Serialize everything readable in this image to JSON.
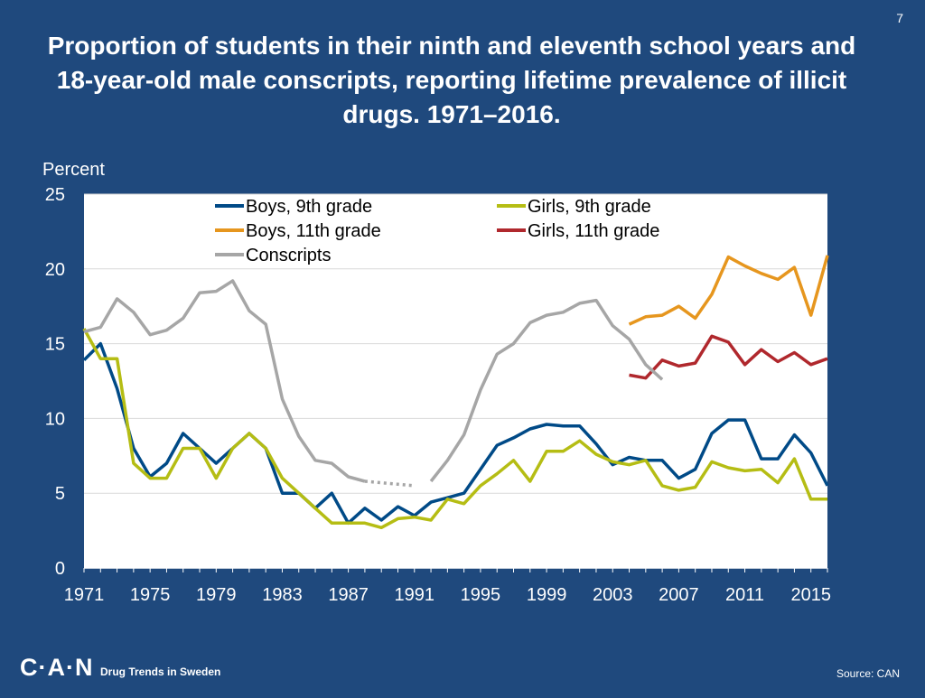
{
  "page_number": "7",
  "title": "Proportion of students in their ninth and eleventh school years and 18-year-old male conscripts, reporting lifetime prevalence of illicit drugs. 1971–2016.",
  "footer": {
    "logo": "C·A·N",
    "tagline": "Drug Trends in Sweden",
    "source": "Source: CAN"
  },
  "chart_data": {
    "type": "line",
    "title": "Proportion of students in their ninth and eleventh school years and 18-year-old male conscripts, reporting lifetime prevalence of illicit drugs. 1971–2016.",
    "ylabel": "Percent",
    "xlabel": "",
    "xlim": [
      1971,
      2016
    ],
    "ylim": [
      0,
      25
    ],
    "yticks": [
      0,
      5,
      10,
      15,
      20,
      25
    ],
    "xticks": [
      1971,
      1975,
      1979,
      1983,
      1987,
      1991,
      1995,
      1999,
      2003,
      2007,
      2011,
      2015
    ],
    "grid": true,
    "legend_position": "top",
    "series": [
      {
        "name": "Boys, 9th grade",
        "color": "#004a87",
        "points": [
          [
            1971,
            13.9
          ],
          [
            1972,
            15
          ],
          [
            1973,
            12
          ],
          [
            1974,
            8
          ],
          [
            1975,
            6.1
          ],
          [
            1976,
            7
          ],
          [
            1977,
            9
          ],
          [
            1978,
            8
          ],
          [
            1979,
            7
          ],
          [
            1980,
            8
          ],
          [
            1981,
            9
          ],
          [
            1982,
            8
          ],
          [
            1983,
            5
          ],
          [
            1984,
            5
          ],
          [
            1985,
            4
          ],
          [
            1986,
            5
          ],
          [
            1987,
            3
          ],
          [
            1988,
            4
          ],
          [
            1989,
            3.2
          ],
          [
            1990,
            4.1
          ],
          [
            1991,
            3.5
          ],
          [
            1992,
            4.4
          ],
          [
            1993,
            4.7
          ],
          [
            1994,
            5
          ],
          [
            1995,
            6.6
          ],
          [
            1996,
            8.2
          ],
          [
            1997,
            8.7
          ],
          [
            1998,
            9.3
          ],
          [
            1999,
            9.6
          ],
          [
            2000,
            9.5
          ],
          [
            2001,
            9.5
          ],
          [
            2002,
            8.3
          ],
          [
            2003,
            6.9
          ],
          [
            2004,
            7.4
          ],
          [
            2005,
            7.2
          ],
          [
            2006,
            7.2
          ],
          [
            2007,
            6
          ],
          [
            2008,
            6.6
          ],
          [
            2009,
            9
          ],
          [
            2010,
            9.9
          ],
          [
            2011,
            9.9
          ],
          [
            2012,
            7.3
          ],
          [
            2013,
            7.3
          ],
          [
            2014,
            8.9
          ],
          [
            2015,
            7.7
          ],
          [
            2016,
            5.5
          ]
        ]
      },
      {
        "name": "Girls, 9th grade",
        "color": "#b5bd14",
        "points": [
          [
            1971,
            16
          ],
          [
            1972,
            14
          ],
          [
            1973,
            14
          ],
          [
            1974,
            7
          ],
          [
            1975,
            6
          ],
          [
            1976,
            6
          ],
          [
            1977,
            8
          ],
          [
            1978,
            8
          ],
          [
            1979,
            6
          ],
          [
            1980,
            8
          ],
          [
            1981,
            9
          ],
          [
            1982,
            8
          ],
          [
            1983,
            6
          ],
          [
            1984,
            5
          ],
          [
            1985,
            4
          ],
          [
            1986,
            3
          ],
          [
            1987,
            3
          ],
          [
            1988,
            3
          ],
          [
            1989,
            2.7
          ],
          [
            1990,
            3.3
          ],
          [
            1991,
            3.4
          ],
          [
            1992,
            3.2
          ],
          [
            1993,
            4.6
          ],
          [
            1994,
            4.3
          ],
          [
            1995,
            5.5
          ],
          [
            1996,
            6.3
          ],
          [
            1997,
            7.2
          ],
          [
            1998,
            5.8
          ],
          [
            1999,
            7.8
          ],
          [
            2000,
            7.8
          ],
          [
            2001,
            8.5
          ],
          [
            2002,
            7.6
          ],
          [
            2003,
            7.1
          ],
          [
            2004,
            6.9
          ],
          [
            2005,
            7.2
          ],
          [
            2006,
            5.5
          ],
          [
            2007,
            5.2
          ],
          [
            2008,
            5.4
          ],
          [
            2009,
            7.1
          ],
          [
            2010,
            6.7
          ],
          [
            2011,
            6.5
          ],
          [
            2012,
            6.6
          ],
          [
            2013,
            5.7
          ],
          [
            2014,
            7.3
          ],
          [
            2015,
            4.6
          ],
          [
            2016,
            4.6
          ]
        ]
      },
      {
        "name": "Boys, 11th grade",
        "color": "#e6961e",
        "points": [
          [
            2004,
            16.3
          ],
          [
            2005,
            16.8
          ],
          [
            2006,
            16.9
          ],
          [
            2007,
            17.5
          ],
          [
            2008,
            16.7
          ],
          [
            2009,
            18.3
          ],
          [
            2010,
            20.8
          ],
          [
            2011,
            20.2
          ],
          [
            2012,
            19.7
          ],
          [
            2013,
            19.3
          ],
          [
            2014,
            20.1
          ],
          [
            2015,
            16.9
          ],
          [
            2016,
            20.9
          ]
        ]
      },
      {
        "name": "Girls, 11th grade",
        "color": "#b0282d",
        "points": [
          [
            2004,
            12.9
          ],
          [
            2005,
            12.7
          ],
          [
            2006,
            13.9
          ],
          [
            2007,
            13.5
          ],
          [
            2008,
            13.7
          ],
          [
            2009,
            15.5
          ],
          [
            2010,
            15.1
          ],
          [
            2011,
            13.6
          ],
          [
            2012,
            14.6
          ],
          [
            2013,
            13.8
          ],
          [
            2014,
            14.4
          ],
          [
            2015,
            13.6
          ],
          [
            2016,
            14
          ]
        ]
      },
      {
        "name": "Conscripts",
        "color": "#a6a6a6",
        "segments": [
          {
            "style": "solid",
            "points": [
              [
                1971,
                15.8
              ],
              [
                1972,
                16.1
              ],
              [
                1973,
                18
              ],
              [
                1974,
                17.1
              ],
              [
                1975,
                15.6
              ],
              [
                1976,
                15.9
              ],
              [
                1977,
                16.7
              ],
              [
                1978,
                18.4
              ],
              [
                1979,
                18.5
              ],
              [
                1980,
                19.2
              ],
              [
                1981,
                17.2
              ],
              [
                1982,
                16.3
              ],
              [
                1983,
                11.3
              ],
              [
                1984,
                8.8
              ],
              [
                1985,
                7.2
              ],
              [
                1986,
                7
              ],
              [
                1987,
                6.1
              ],
              [
                1988,
                5.8
              ]
            ]
          },
          {
            "style": "dotted",
            "points": [
              [
                1988,
                5.8
              ],
              [
                1991,
                5.5
              ]
            ]
          },
          {
            "style": "solid",
            "points": [
              [
                1992,
                5.8
              ],
              [
                1993,
                7.2
              ],
              [
                1994,
                8.9
              ],
              [
                1995,
                11.9
              ],
              [
                1996,
                14.3
              ],
              [
                1997,
                15
              ],
              [
                1998,
                16.4
              ],
              [
                1999,
                16.9
              ],
              [
                2000,
                17.1
              ],
              [
                2001,
                17.7
              ],
              [
                2002,
                17.9
              ],
              [
                2003,
                16.2
              ],
              [
                2004,
                15.3
              ],
              [
                2005,
                13.6
              ],
              [
                2006,
                12.6
              ]
            ]
          }
        ]
      }
    ]
  }
}
